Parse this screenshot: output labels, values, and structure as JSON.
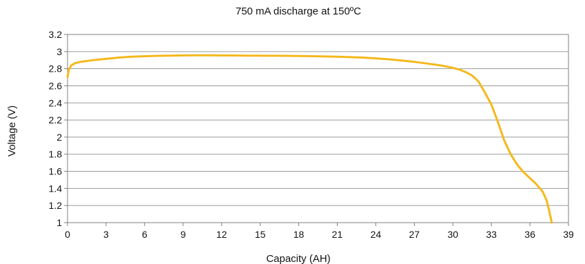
{
  "chart_data": {
    "type": "line",
    "title": "750 mA discharge at 150ºC",
    "xlabel": "Capacity (AH)",
    "ylabel": "Voltage (V)",
    "xlim": [
      0,
      39
    ],
    "ylim": [
      1,
      3.2
    ],
    "xticks": [
      0,
      3,
      6,
      9,
      12,
      15,
      18,
      21,
      24,
      27,
      30,
      33,
      36,
      39
    ],
    "yticks": [
      1,
      1.2,
      1.4,
      1.6,
      1.8,
      2,
      2.2,
      2.4,
      2.6,
      2.8,
      3,
      3.2
    ],
    "xtick_labels": [
      "0",
      "3",
      "6",
      "9",
      "12",
      "15",
      "18",
      "21",
      "24",
      "27",
      "30",
      "33",
      "36",
      "39"
    ],
    "ytick_labels": [
      "1",
      "1.2",
      "1.4",
      "1.6",
      "1.8",
      "2",
      "2.2",
      "2.4",
      "2.6",
      "2.8",
      "3",
      "3.2"
    ],
    "grid": true,
    "series": [
      {
        "color": "#F5B81C",
        "x": [
          0,
          0.1,
          0.3,
          0.6,
          1,
          1.5,
          2,
          3,
          4,
          5,
          6,
          7,
          8,
          9,
          10,
          11,
          12,
          13,
          14,
          15,
          16,
          17,
          18,
          19,
          20,
          21,
          22,
          23,
          24,
          25,
          26,
          27,
          28,
          29,
          30,
          30.5,
          31,
          31.5,
          32,
          32.5,
          33,
          33.5,
          34,
          34.5,
          35,
          35.5,
          36,
          36.5,
          37,
          37.3,
          37.5,
          37.7
        ],
        "y": [
          2.7,
          2.79,
          2.84,
          2.865,
          2.88,
          2.89,
          2.9,
          2.915,
          2.93,
          2.94,
          2.945,
          2.95,
          2.953,
          2.955,
          2.956,
          2.956,
          2.955,
          2.954,
          2.953,
          2.952,
          2.951,
          2.95,
          2.948,
          2.946,
          2.943,
          2.94,
          2.935,
          2.93,
          2.92,
          2.91,
          2.895,
          2.88,
          2.86,
          2.84,
          2.81,
          2.79,
          2.76,
          2.72,
          2.65,
          2.52,
          2.38,
          2.18,
          1.96,
          1.8,
          1.68,
          1.59,
          1.52,
          1.45,
          1.36,
          1.26,
          1.14,
          1.0
        ]
      }
    ]
  }
}
